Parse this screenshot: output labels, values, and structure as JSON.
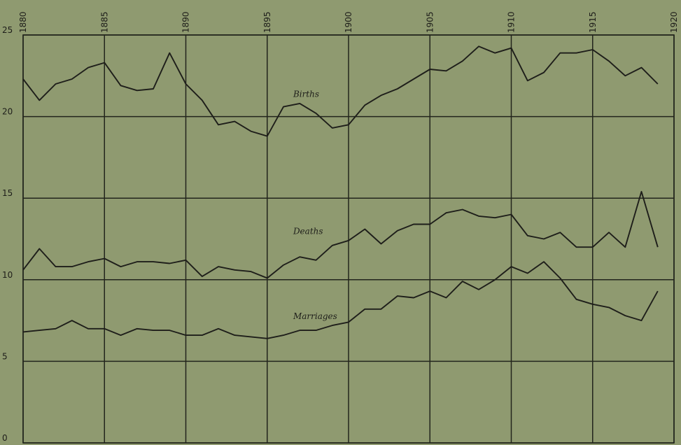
{
  "chart_data": {
    "type": "line",
    "title": "",
    "xlabel": "",
    "ylabel": "",
    "xlim": [
      1880,
      1920
    ],
    "ylim": [
      0,
      25
    ],
    "grid": true,
    "legend": "none",
    "x_ticks": [
      "1880",
      "1885",
      "1890",
      "1895",
      "1900",
      "1905",
      "1910",
      "1915",
      "1920"
    ],
    "y_ticks": [
      "0",
      "5",
      "10",
      "15",
      "20",
      "25"
    ],
    "x": [
      1880,
      1881,
      1882,
      1883,
      1884,
      1885,
      1886,
      1887,
      1888,
      1889,
      1890,
      1891,
      1892,
      1893,
      1894,
      1895,
      1896,
      1897,
      1898,
      1899,
      1900,
      1901,
      1902,
      1903,
      1904,
      1905,
      1906,
      1907,
      1908,
      1909,
      1910,
      1911,
      1912,
      1913,
      1914,
      1915,
      1916,
      1917,
      1918,
      1919
    ],
    "series": [
      {
        "name": "Births",
        "values": [
          22.3,
          21.0,
          22.0,
          22.3,
          23.0,
          23.3,
          21.9,
          21.6,
          21.7,
          23.9,
          22.0,
          21.0,
          19.5,
          19.7,
          19.1,
          18.8,
          20.6,
          20.8,
          20.2,
          19.3,
          19.5,
          20.7,
          21.3,
          21.7,
          22.3,
          22.9,
          22.8,
          23.4,
          24.3,
          23.9,
          24.2,
          22.2,
          22.7,
          23.9,
          23.9,
          24.1,
          23.4,
          22.5,
          23.0,
          22.0
        ]
      },
      {
        "name": "Deaths",
        "values": [
          10.6,
          11.9,
          10.8,
          10.8,
          11.1,
          11.3,
          10.8,
          11.1,
          11.1,
          11.0,
          11.2,
          10.2,
          10.8,
          10.6,
          10.5,
          10.1,
          10.9,
          11.4,
          11.2,
          12.1,
          12.4,
          13.1,
          12.2,
          13.0,
          13.4,
          13.4,
          14.1,
          14.3,
          13.9,
          13.8,
          14.0,
          12.7,
          12.5,
          12.9,
          12.0,
          12.0,
          12.9,
          12.0,
          15.4,
          12.0
        ]
      },
      {
        "name": "Marriages",
        "values": [
          6.8,
          6.9,
          7.0,
          7.5,
          7.0,
          7.0,
          6.6,
          7.0,
          6.9,
          6.9,
          6.6,
          6.6,
          7.0,
          6.6,
          6.5,
          6.4,
          6.6,
          6.9,
          6.9,
          7.2,
          7.4,
          8.2,
          8.2,
          9.0,
          8.9,
          9.3,
          8.9,
          9.9,
          9.4,
          10.0,
          10.8,
          10.4,
          11.1,
          10.1,
          8.8,
          8.5,
          8.3,
          7.8,
          7.5,
          9.3
        ]
      }
    ]
  },
  "colors": {
    "paper": "#8f9a70",
    "ink": "#1e1e1a",
    "grid": "#22241c"
  }
}
